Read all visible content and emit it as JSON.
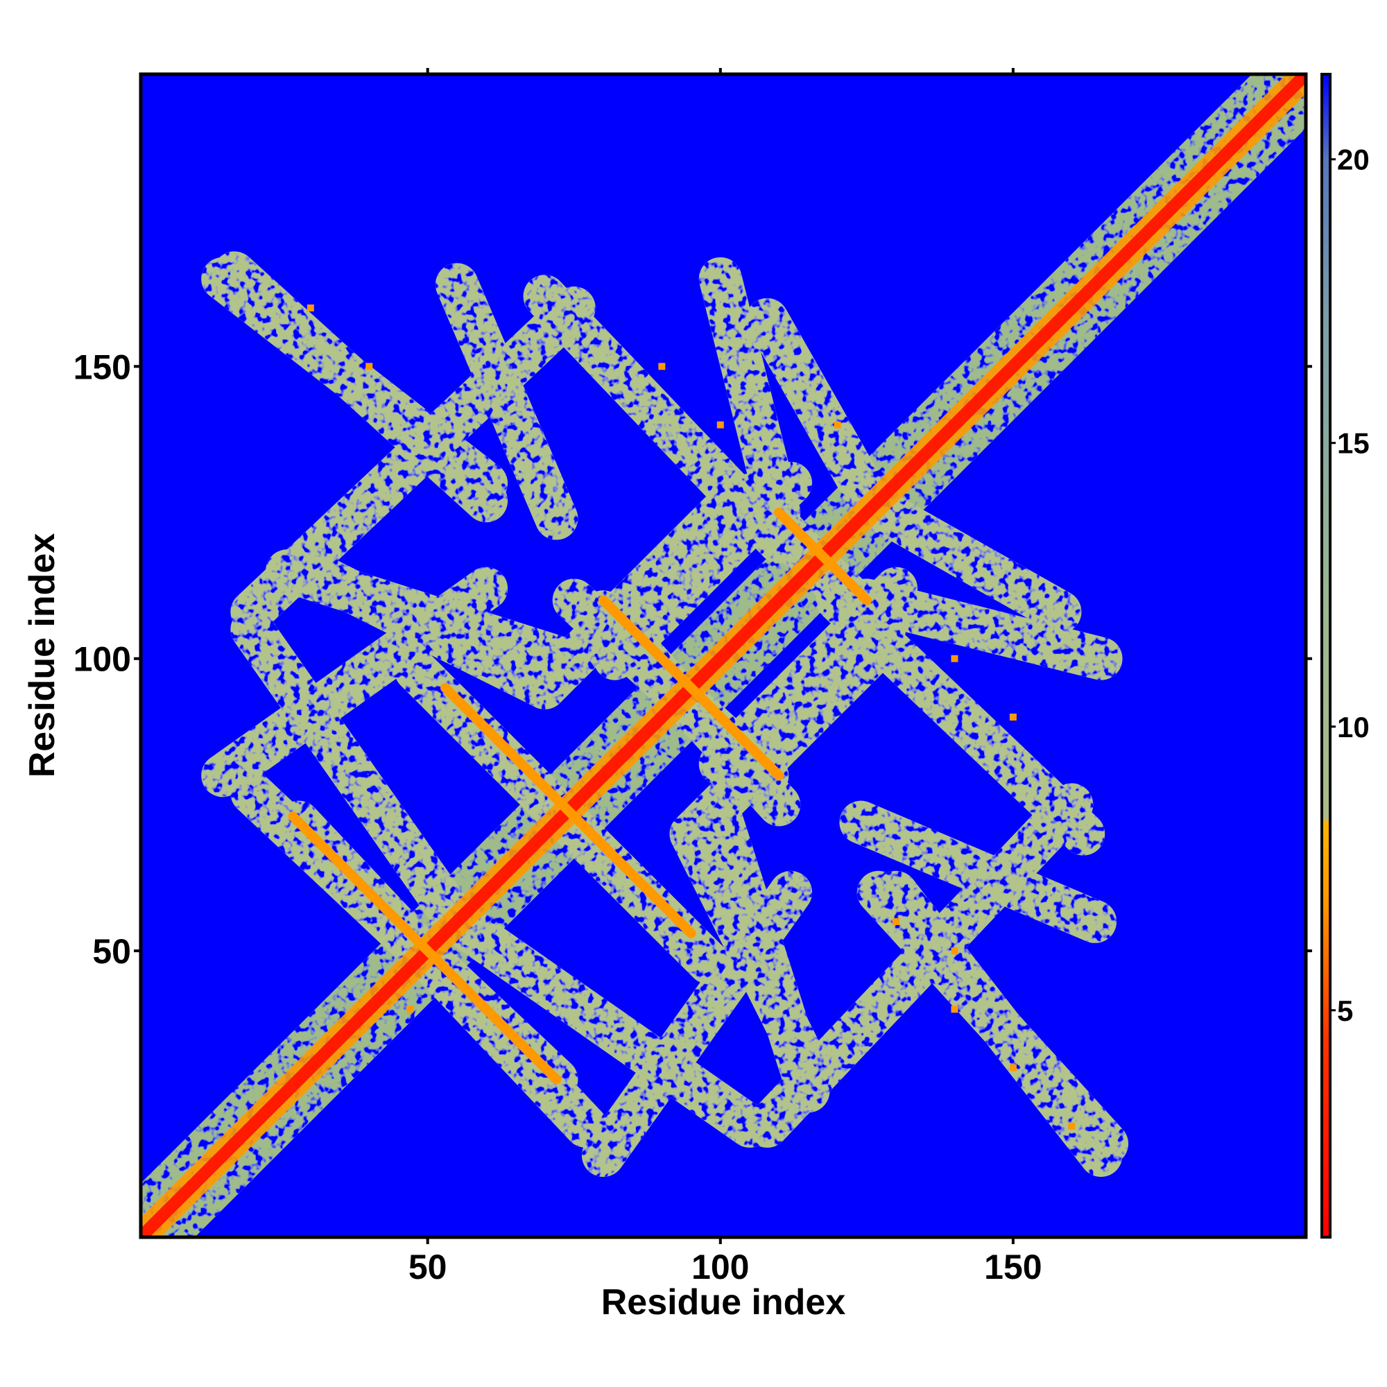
{
  "chart_data": {
    "type": "heatmap",
    "title": "",
    "xlabel": "Residue index",
    "ylabel": "Residue index",
    "xlim": [
      1,
      200
    ],
    "ylim": [
      1,
      200
    ],
    "x_ticks": [
      50,
      100,
      150
    ],
    "y_ticks": [
      50,
      100,
      150
    ],
    "x_tick_labels": [
      "50",
      "100",
      "150"
    ],
    "y_tick_labels": [
      "50",
      "100",
      "150"
    ],
    "colorbar": {
      "range": [
        1,
        21.5
      ],
      "ticks": [
        5,
        10,
        15,
        20
      ],
      "tick_labels": [
        "5",
        "10",
        "15",
        "20"
      ],
      "stops": [
        {
          "value": 1,
          "color": "#ff0000"
        },
        {
          "value": 4.5,
          "color": "#ff3300"
        },
        {
          "value": 7,
          "color": "#ff9900"
        },
        {
          "value": 8.3,
          "color": "#ffb300"
        },
        {
          "value": 8.4,
          "color": "#aabb88"
        },
        {
          "value": 12,
          "color": "#9bb890"
        },
        {
          "value": 17,
          "color": "#7d9fa8"
        },
        {
          "value": 20,
          "color": "#5577bb"
        },
        {
          "value": 21.5,
          "color": "#0000ff"
        }
      ]
    },
    "grid": false,
    "background_color": "#0000ff",
    "description_features": {
      "main_diagonal": {
        "from": [
          1,
          1
        ],
        "to": [
          200,
          200
        ]
      },
      "antidiagonal_contact_lines": [
        {
          "from": [
            27,
            73
          ],
          "to": [
            72,
            28
          ]
        },
        {
          "from": [
            53,
            95
          ],
          "to": [
            95,
            53
          ]
        },
        {
          "from": [
            80,
            110
          ],
          "to": [
            110,
            80
          ]
        },
        {
          "from": [
            110,
            125
          ],
          "to": [
            125,
            110
          ]
        }
      ]
    }
  }
}
